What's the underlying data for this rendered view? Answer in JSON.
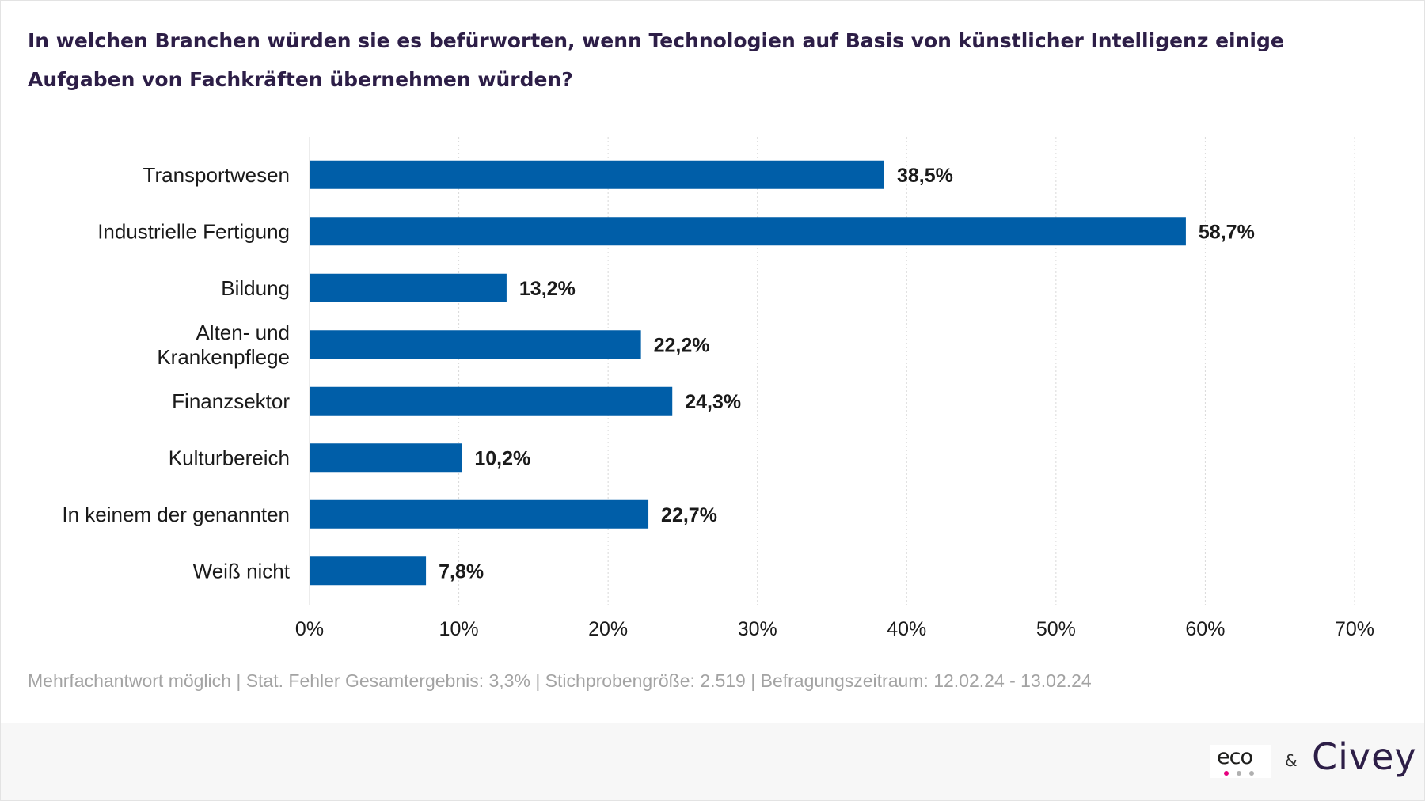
{
  "header": {
    "title": "In welchen Branchen würden sie es befürworten, wenn Technologien auf Basis von künstlicher Intelligenz einige Aufgaben von Fachkräften übernehmen würden?"
  },
  "chart_data": {
    "type": "bar",
    "orientation": "horizontal",
    "categories": [
      [
        "Transportwesen"
      ],
      [
        "Industrielle Fertigung"
      ],
      [
        "Bildung"
      ],
      [
        "Alten- und",
        "Krankenpflege"
      ],
      [
        "Finanzsektor"
      ],
      [
        "Kulturbereich"
      ],
      [
        "In keinem der genannten"
      ],
      [
        "Weiß nicht"
      ]
    ],
    "values": [
      38.5,
      58.7,
      13.2,
      22.2,
      24.3,
      10.2,
      22.7,
      7.8
    ],
    "value_labels": [
      "38,5%",
      "58,7%",
      "13,2%",
      "22,2%",
      "24,3%",
      "10,2%",
      "22,7%",
      "7,8%"
    ],
    "xlim": [
      0,
      70
    ],
    "x_ticks": [
      0,
      10,
      20,
      30,
      40,
      50,
      60,
      70
    ],
    "x_tick_labels": [
      "0%",
      "10%",
      "20%",
      "30%",
      "40%",
      "50%",
      "60%",
      "70%"
    ],
    "grid": "vertical dotted",
    "bar_color": "#005ea8",
    "grid_color": "#d9d9d9",
    "text_color": "#1a1a1a",
    "xlabel": "",
    "ylabel": ""
  },
  "footnote": "Mehrfachantwort möglich | Stat. Fehler Gesamtergebnis: 3,3% | Stichprobengröße: 2.519 | Befragungszeitraum: 12.02.24 - 13.02.24",
  "footer": {
    "logo_eco_text": "eco",
    "ampersand": "&",
    "logo_civey_text": "Civey",
    "eco_dot_colors": [
      "#e6007e",
      "#b0b0b0",
      "#b0b0b0"
    ]
  }
}
